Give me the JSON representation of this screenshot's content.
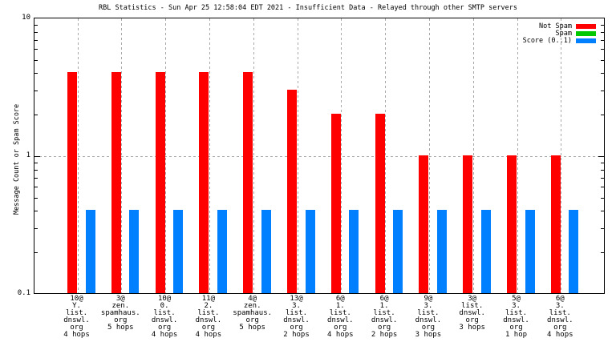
{
  "title": "RBL Statistics - Sun Apr 25 12:58:04 EDT 2021 - Insufficient Data - Relayed through other SMTP servers",
  "colors": {
    "not_spam": "#ff0000",
    "spam": "#00c800",
    "score": "#0080ff",
    "grid": "#a8a8a8",
    "border": "#000000",
    "background": "#ffffff"
  },
  "chart_data": {
    "type": "bar",
    "title": "RBL Statistics - Sun Apr 25 12:58:04 EDT 2021 - Insufficient Data - Relayed through other SMTP servers",
    "xlabel": "",
    "ylabel": "Message Count or Spam Score",
    "y_scale": "log",
    "ylim": [
      0.1,
      10
    ],
    "yticks": [
      {
        "value": 10,
        "label": "10"
      },
      {
        "value": 1,
        "label": "1"
      },
      {
        "value": 0.1,
        "label": "0.1"
      }
    ],
    "grid": true,
    "legend_position": "top-right",
    "categories": [
      "10@\nY.\nlist.\ndnswl.\norg\n4 hops",
      "3@\nzen.\nspamhaus.\norg\n5 hops",
      "10@\n0.\nlist.\ndnswl.\norg\n4 hops",
      "11@\n2.\nlist.\ndnswl.\norg\n4 hops",
      "4@\nzen.\nspamhaus.\norg\n5 hops",
      "13@\n3.\nlist.\ndnswl.\norg\n2 hops",
      "6@\n1.\nlist.\ndnswl.\norg\n4 hops",
      "6@\n1.\nlist.\ndnswl.\norg\n2 hops",
      "9@\n3.\nlist.\ndnswl.\norg\n3 hops",
      "3@\nlist.\ndnswl.\norg\n3 hops",
      "5@\n3.\nlist.\ndnswl.\norg\n1 hop",
      "6@\n3.\nlist.\ndnswl.\norg\n4 hops"
    ],
    "series": [
      {
        "name": "Not Spam",
        "color": "#ff0000",
        "values": [
          4,
          4,
          4,
          4,
          4,
          3,
          2,
          2,
          1,
          1,
          1,
          1
        ]
      },
      {
        "name": "Spam",
        "color": "#00c800",
        "values": [
          0,
          0,
          0,
          0,
          0,
          0,
          0,
          0,
          0,
          0,
          0,
          0
        ]
      },
      {
        "name": "Score (0..1)",
        "color": "#0080ff",
        "values": [
          0.4,
          0.4,
          0.4,
          0.4,
          0.4,
          0.4,
          0.4,
          0.4,
          0.4,
          0.4,
          0.4,
          0.4
        ]
      }
    ]
  }
}
